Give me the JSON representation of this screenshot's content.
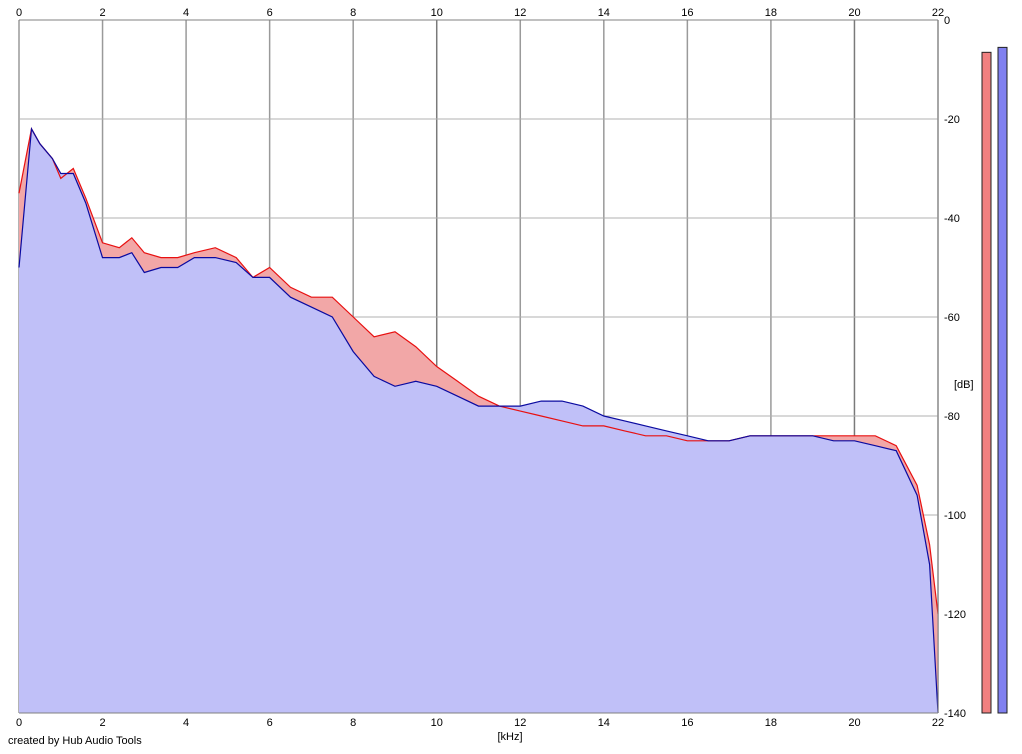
{
  "chart_data": {
    "type": "area",
    "xlabel": "[kHz]",
    "ylabel": "[dB]",
    "xlim": [
      0,
      22
    ],
    "ylim": [
      -140,
      0
    ],
    "x_ticks": [
      "0",
      "2",
      "4",
      "6",
      "8",
      "10",
      "12",
      "14",
      "16",
      "18",
      "20",
      "22"
    ],
    "y_ticks": [
      "0",
      "-20",
      "-40",
      "-60",
      "-80",
      "-100",
      "-120",
      "-140"
    ],
    "grid": true,
    "series": [
      {
        "channel": "red",
        "color": "#e81010",
        "fill": "#f2a7a7",
        "x": [
          0,
          0.3,
          0.5,
          0.8,
          1.0,
          1.3,
          1.6,
          2.0,
          2.4,
          2.7,
          3.0,
          3.4,
          3.8,
          4.2,
          4.7,
          5.2,
          5.6,
          6.0,
          6.5,
          7.0,
          7.5,
          8.0,
          8.5,
          9.0,
          9.5,
          10.0,
          10.5,
          11.0,
          11.5,
          12.0,
          12.5,
          13.0,
          13.5,
          14.0,
          14.5,
          15.0,
          15.5,
          16.0,
          16.5,
          17.0,
          17.5,
          18.0,
          18.5,
          19.0,
          19.5,
          20.0,
          20.5,
          21.0,
          21.5,
          21.8,
          22.0
        ],
        "y": [
          -35,
          -22,
          -25,
          -28,
          -32,
          -30,
          -36,
          -45,
          -46,
          -44,
          -47,
          -48,
          -48,
          -47,
          -46,
          -48,
          -52,
          -50,
          -54,
          -56,
          -56,
          -60,
          -64,
          -63,
          -66,
          -70,
          -73,
          -76,
          -78,
          -79,
          -80,
          -81,
          -82,
          -82,
          -83,
          -84,
          -84,
          -85,
          -85,
          -85,
          -84,
          -84,
          -84,
          -84,
          -84,
          -84,
          -84,
          -86,
          -94,
          -106,
          -120
        ]
      },
      {
        "channel": "blue",
        "color": "#0a0aa0",
        "fill": "#c0c0f8",
        "x": [
          0,
          0.3,
          0.5,
          0.8,
          1.0,
          1.3,
          1.6,
          2.0,
          2.4,
          2.7,
          3.0,
          3.4,
          3.8,
          4.2,
          4.7,
          5.2,
          5.6,
          6.0,
          6.5,
          7.0,
          7.5,
          8.0,
          8.5,
          9.0,
          9.5,
          10.0,
          10.5,
          11.0,
          11.5,
          12.0,
          12.5,
          13.0,
          13.5,
          14.0,
          14.5,
          15.0,
          15.5,
          16.0,
          16.5,
          17.0,
          17.5,
          18.0,
          18.5,
          19.0,
          19.5,
          20.0,
          20.5,
          21.0,
          21.5,
          21.8,
          22.0
        ],
        "y": [
          -50,
          -22,
          -25,
          -28,
          -31,
          -31,
          -37,
          -48,
          -48,
          -47,
          -51,
          -50,
          -50,
          -48,
          -48,
          -49,
          -52,
          -52,
          -56,
          -58,
          -60,
          -67,
          -72,
          -74,
          -73,
          -74,
          -76,
          -78,
          -78,
          -78,
          -77,
          -77,
          -78,
          -80,
          -81,
          -82,
          -83,
          -84,
          -85,
          -85,
          -84,
          -84,
          -84,
          -84,
          -85,
          -85,
          -86,
          -87,
          -96,
          -110,
          -140
        ]
      }
    ],
    "level_meters": [
      {
        "channel": "red",
        "color": "#f08080",
        "level_db": -3.5
      },
      {
        "channel": "blue",
        "color": "#8080f0",
        "level_db": -2.5
      }
    ]
  },
  "footer": {
    "credit": "created by Hub Audio Tools"
  }
}
